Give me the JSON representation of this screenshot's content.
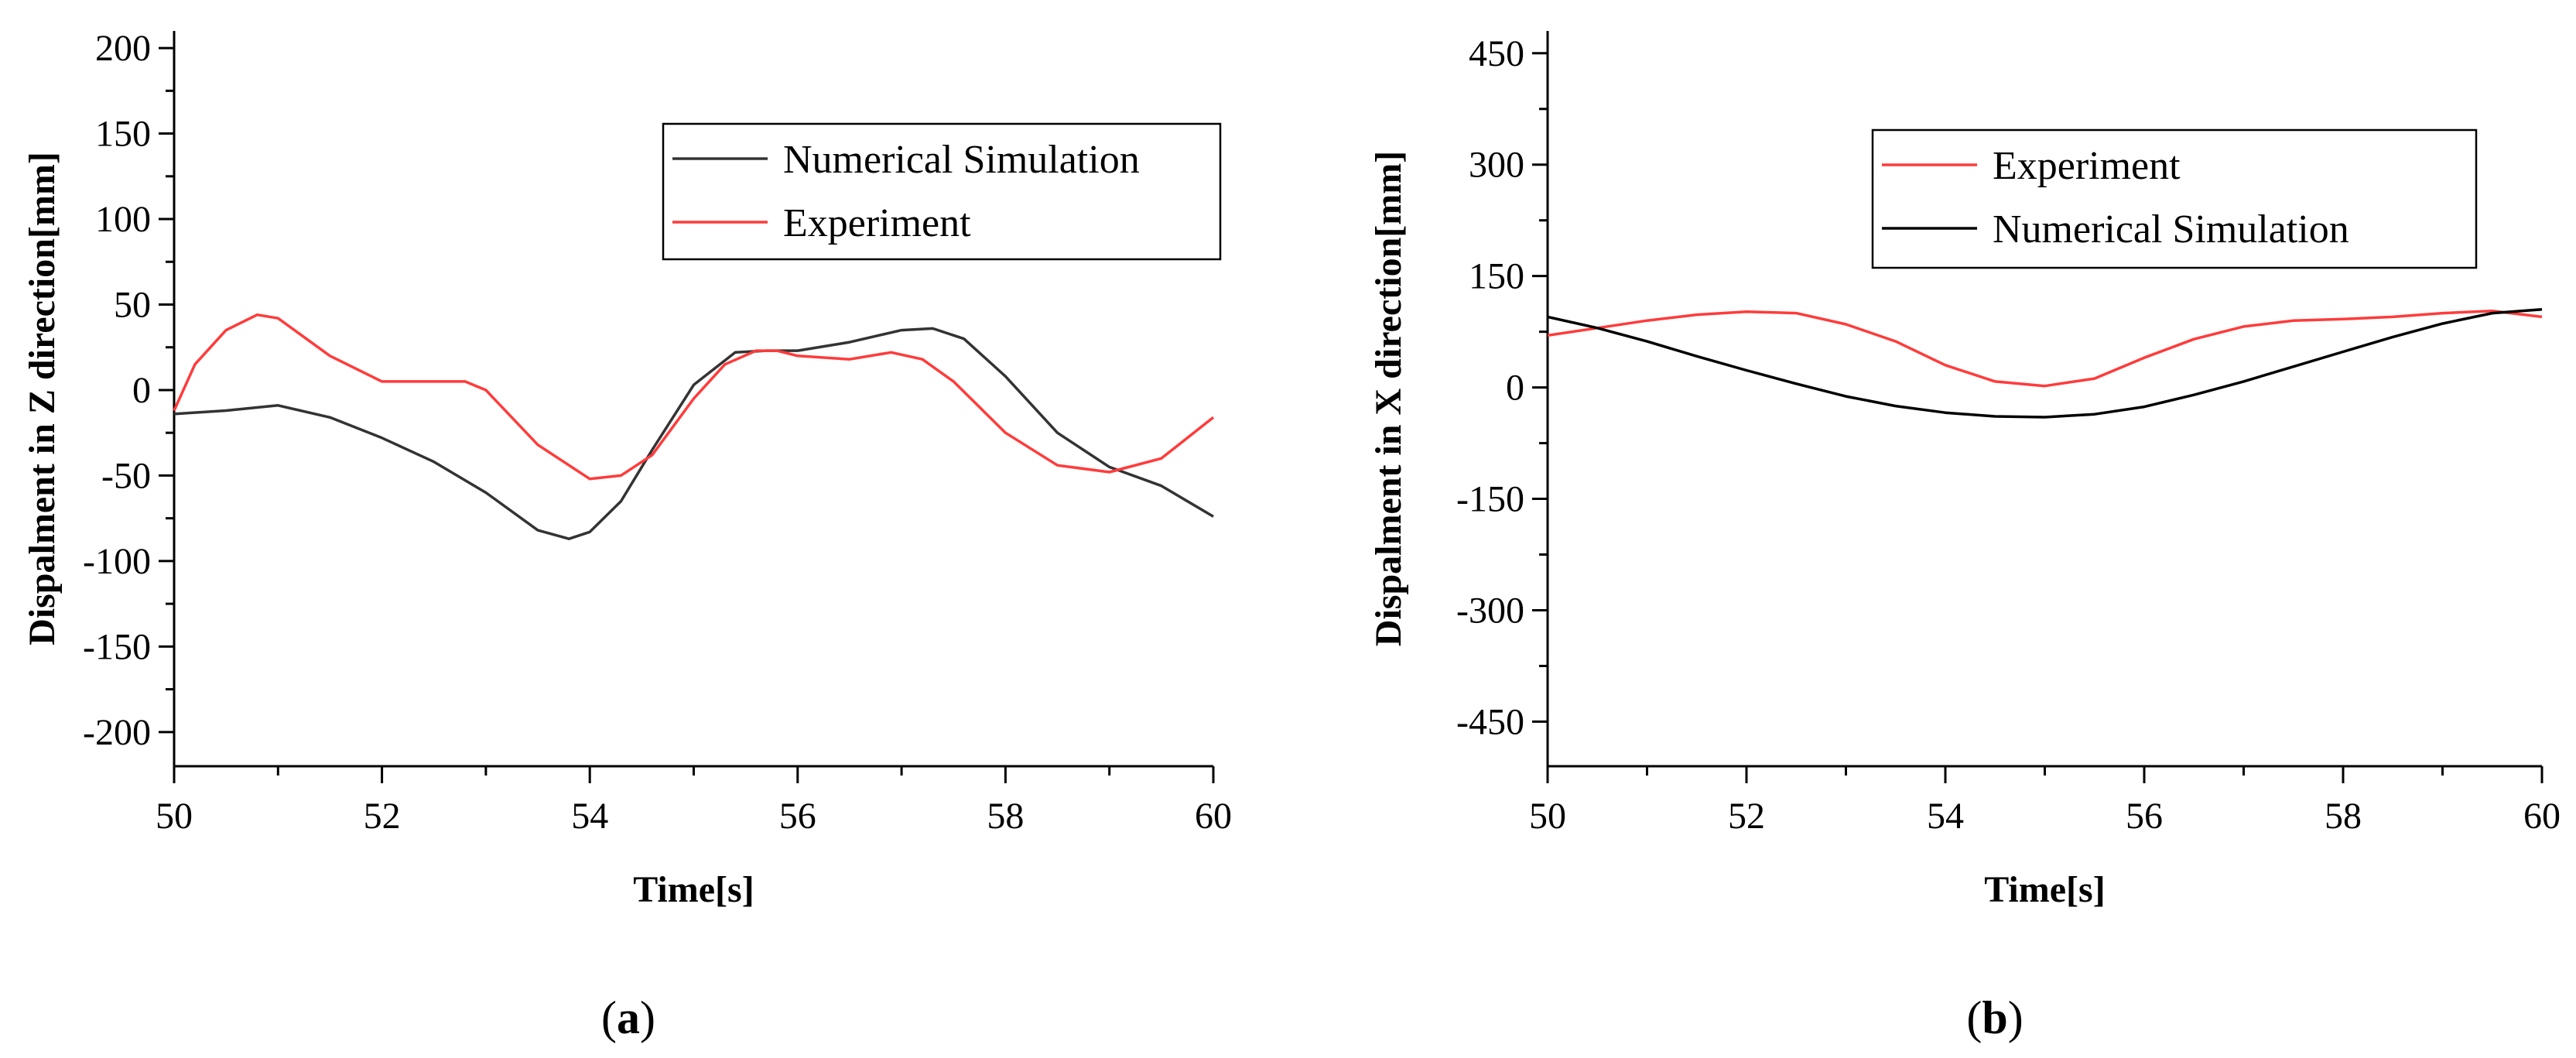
{
  "chart_data": [
    {
      "type": "line",
      "panel_label": "a",
      "title": "",
      "xlabel": "Time[s]",
      "ylabel": "Dispalment in Z direction[mm]",
      "xlim": [
        50,
        60
      ],
      "ylim": [
        -220,
        210
      ],
      "xticks": [
        50,
        52,
        54,
        56,
        58,
        60
      ],
      "yticks": [
        -200,
        -150,
        -100,
        -50,
        0,
        50,
        100,
        150,
        200
      ],
      "grid": false,
      "legend_position": "top-right",
      "series": [
        {
          "name": "Numerical Simulation",
          "color": "#333333",
          "x": [
            50.0,
            50.5,
            51.0,
            51.5,
            52.0,
            52.5,
            53.0,
            53.5,
            53.8,
            54.0,
            54.3,
            54.6,
            55.0,
            55.4,
            55.7,
            56.0,
            56.5,
            57.0,
            57.3,
            57.6,
            58.0,
            58.5,
            59.0,
            59.5,
            60.0
          ],
          "y": [
            -14,
            -12,
            -9,
            -16,
            -28,
            -42,
            -60,
            -82,
            -87,
            -83,
            -65,
            -35,
            3,
            22,
            23,
            23,
            28,
            35,
            36,
            30,
            8,
            -25,
            -45,
            -56,
            -74
          ]
        },
        {
          "name": "Experiment",
          "color": "#ff3b3b",
          "x": [
            50.0,
            50.2,
            50.5,
            50.8,
            51.0,
            51.5,
            52.0,
            52.5,
            52.8,
            53.0,
            53.5,
            54.0,
            54.3,
            54.6,
            55.0,
            55.3,
            55.6,
            55.8,
            56.0,
            56.5,
            56.9,
            57.2,
            57.5,
            58.0,
            58.5,
            59.0,
            59.5,
            60.0
          ],
          "y": [
            -12,
            15,
            35,
            44,
            42,
            20,
            5,
            5,
            5,
            0,
            -32,
            -52,
            -50,
            -38,
            -5,
            15,
            23,
            23,
            20,
            18,
            22,
            18,
            5,
            -25,
            -44,
            -48,
            -40,
            -16
          ]
        }
      ]
    },
    {
      "type": "line",
      "panel_label": "b",
      "title": "",
      "xlabel": "Time[s]",
      "ylabel": "Dispalment in X direction[mm]",
      "xlim": [
        50,
        60
      ],
      "ylim": [
        -510,
        480
      ],
      "xticks": [
        50,
        52,
        54,
        56,
        58,
        60
      ],
      "yticks": [
        -450,
        -300,
        -150,
        0,
        150,
        300,
        450
      ],
      "grid": false,
      "legend_position": "top-right",
      "series": [
        {
          "name": "Experiment",
          "color": "#ff3b3b",
          "x": [
            50.0,
            50.5,
            51.0,
            51.5,
            52.0,
            52.5,
            53.0,
            53.5,
            54.0,
            54.5,
            55.0,
            55.5,
            56.0,
            56.5,
            57.0,
            57.5,
            58.0,
            58.5,
            59.0,
            59.5,
            60.0
          ],
          "y": [
            70,
            80,
            90,
            98,
            102,
            100,
            85,
            62,
            30,
            8,
            2,
            12,
            40,
            65,
            82,
            90,
            92,
            95,
            100,
            103,
            95
          ]
        },
        {
          "name": "Numerical Simulation",
          "color": "#000000",
          "x": [
            50.0,
            50.5,
            51.0,
            51.5,
            52.0,
            52.5,
            53.0,
            53.5,
            54.0,
            54.5,
            55.0,
            55.5,
            56.0,
            56.5,
            57.0,
            57.5,
            58.0,
            58.5,
            59.0,
            59.5,
            60.0
          ],
          "y": [
            95,
            80,
            62,
            42,
            23,
            5,
            -12,
            -25,
            -34,
            -39,
            -40,
            -36,
            -26,
            -10,
            8,
            28,
            48,
            68,
            86,
            100,
            105
          ]
        }
      ]
    }
  ]
}
